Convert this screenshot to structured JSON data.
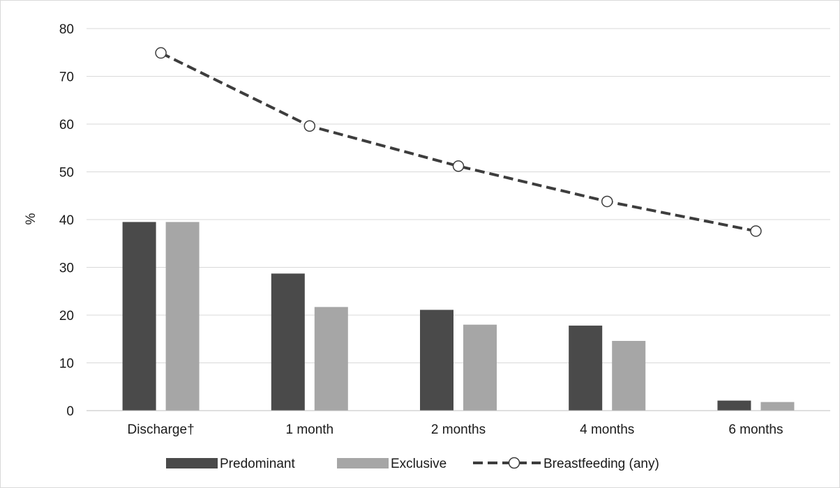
{
  "chart_data": {
    "type": "bar",
    "categories": [
      "Discharge†",
      "1 month",
      "2 months",
      "4 months",
      "6 months"
    ],
    "series": [
      {
        "name": "Predominant",
        "type": "bar",
        "color": "#4a4a4a",
        "values": [
          39.5,
          28.7,
          21.1,
          17.8,
          2.1
        ]
      },
      {
        "name": "Exclusive",
        "type": "bar",
        "color": "#a6a6a6",
        "values": [
          39.5,
          21.7,
          18.0,
          14.6,
          1.8
        ]
      },
      {
        "name": "Breastfeeding (any)",
        "type": "line",
        "color": "#3d3d3d",
        "line_style": "dashed",
        "marker": "open-circle",
        "values": [
          74.9,
          59.6,
          51.2,
          43.8,
          37.6
        ]
      }
    ],
    "ylabel": "%",
    "xlabel": "",
    "title": "",
    "ylim": [
      0,
      80
    ],
    "yticks": [
      0,
      10,
      20,
      30,
      40,
      50,
      60,
      70,
      80
    ],
    "grid": true,
    "legend_position": "bottom"
  }
}
